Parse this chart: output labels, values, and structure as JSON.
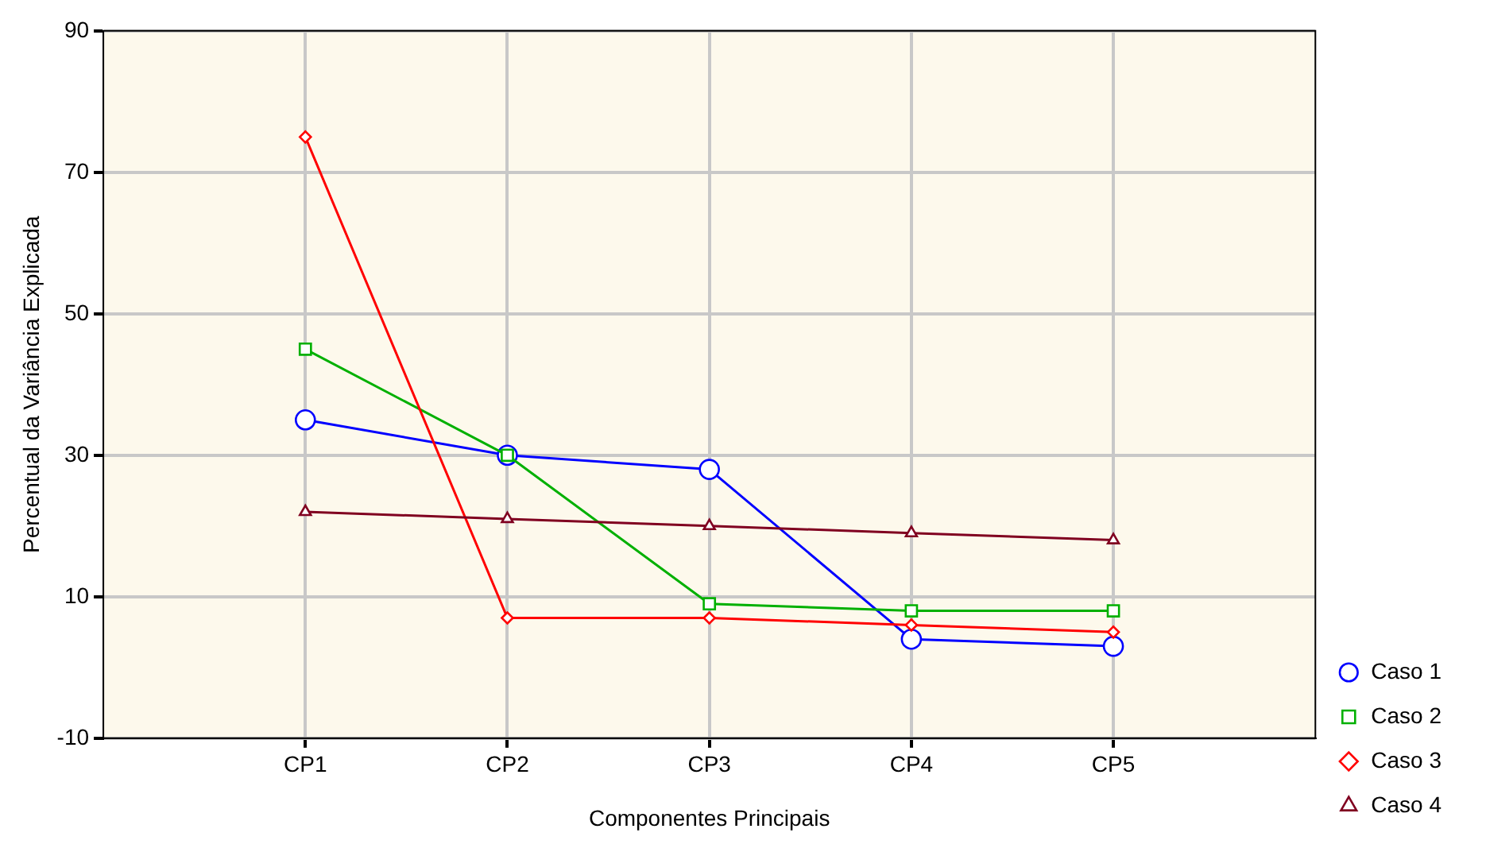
{
  "chart_data": {
    "type": "line",
    "xlabel": "Componentes Principais",
    "ylabel": "Percentual da Variância Explicada",
    "categories": [
      "CP1",
      "CP2",
      "CP3",
      "CP4",
      "CP5"
    ],
    "series": [
      {
        "name": "Caso 1",
        "color": "#0000ff",
        "marker": "circle",
        "values": [
          35,
          30,
          28,
          4,
          3
        ]
      },
      {
        "name": "Caso 2",
        "color": "#00b000",
        "marker": "square",
        "values": [
          45,
          30,
          9,
          8,
          8
        ]
      },
      {
        "name": "Caso 3",
        "color": "#ff0000",
        "marker": "diamond",
        "values": [
          75,
          7,
          7,
          6,
          5
        ]
      },
      {
        "name": "Caso 4",
        "color": "#800020",
        "marker": "triangle",
        "values": [
          22,
          21,
          20,
          19,
          18
        ]
      }
    ],
    "ylim": [
      -10,
      90
    ],
    "yticks": [
      -10,
      10,
      30,
      50,
      70,
      90
    ],
    "grid": true,
    "legend": "bottom right"
  }
}
